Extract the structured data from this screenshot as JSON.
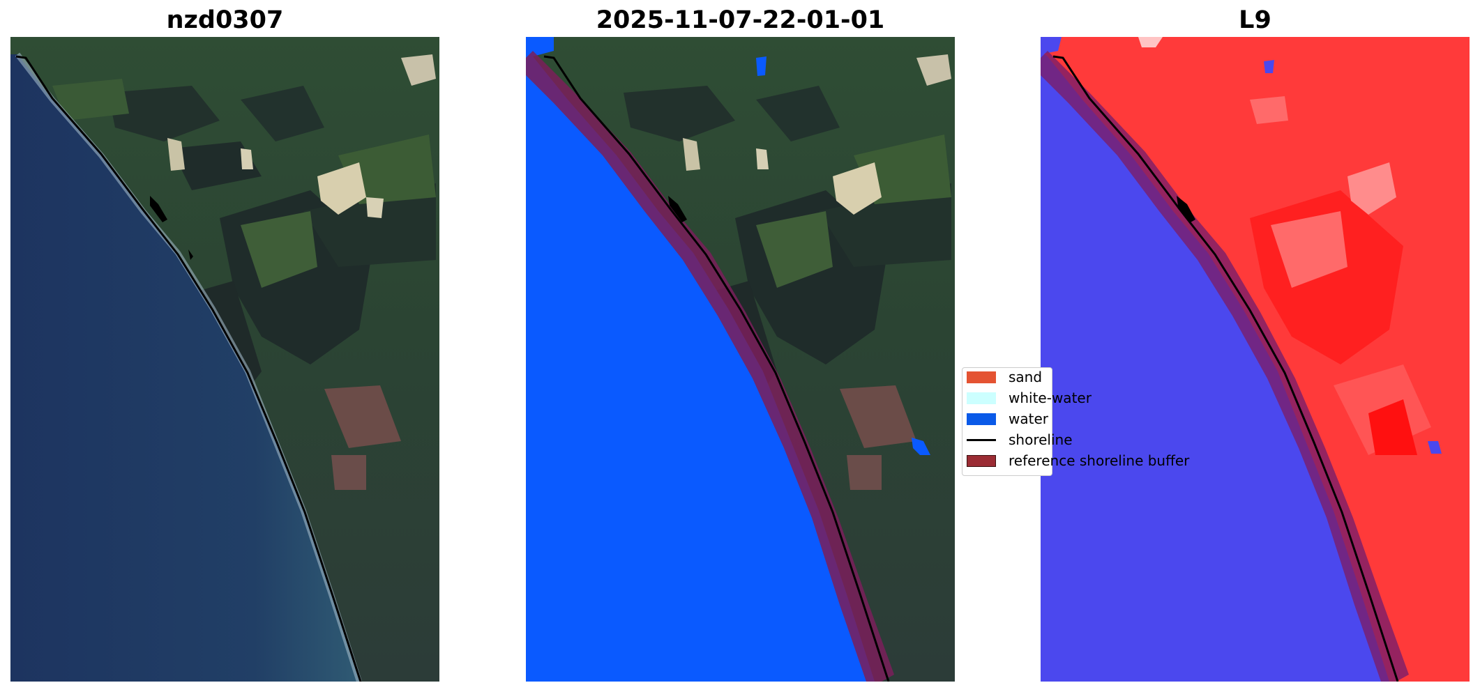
{
  "panels": [
    {
      "title": "nzd0307"
    },
    {
      "title": "2025-11-07-22-01-01"
    },
    {
      "title": "L9"
    }
  ],
  "legend": {
    "items": [
      {
        "label": "sand",
        "color": "#e45332",
        "kind": "patch"
      },
      {
        "label": "white-water",
        "color": "#ccffff",
        "kind": "patch"
      },
      {
        "label": "water",
        "color": "#0a5ae8",
        "kind": "patch"
      },
      {
        "label": "shoreline",
        "color": "#000000",
        "kind": "line"
      },
      {
        "label": "reference shoreline buffer",
        "color": "#9b2c34",
        "kind": "patch"
      }
    ]
  },
  "colors": {
    "ocean": "#1f3a63",
    "land": "#2e4a32",
    "classified_water": "#0a5aff",
    "buffer": "#7a1e5a",
    "index_land": "#ff3030",
    "index_water": "#4b48ee"
  }
}
